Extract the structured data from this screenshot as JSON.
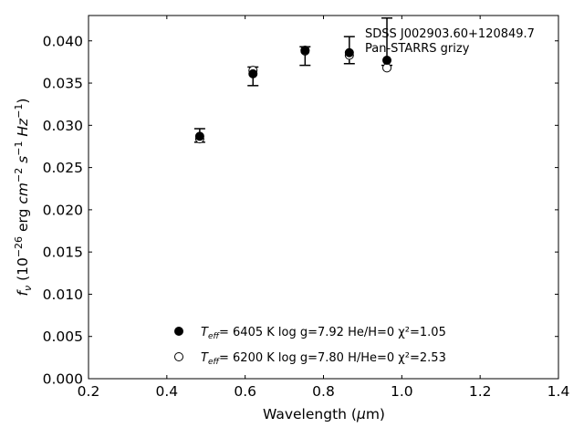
{
  "chart_data": {
    "type": "scatter",
    "xlabel": "Wavelength (μm)",
    "ylabel": "f_ν (10^-26 erg cm^-2 s^-1 Hz^-1)",
    "xlim": [
      0.2,
      1.4
    ],
    "ylim": [
      0.0,
      0.043
    ],
    "x_ticks": [
      "0.2",
      "0.4",
      "0.6",
      "0.8",
      "1.0",
      "1.2",
      "1.4"
    ],
    "y_ticks": [
      "0.000",
      "0.005",
      "0.010",
      "0.015",
      "0.020",
      "0.025",
      "0.030",
      "0.035",
      "0.040"
    ],
    "annotation_lines": [
      "SDSS J002903.60+120849.7",
      "Pan-STARRS grizy"
    ],
    "observed": {
      "x": [
        0.484,
        0.62,
        0.753,
        0.866,
        0.962
      ],
      "y": [
        0.0288,
        0.0358,
        0.0382,
        0.0389,
        0.0399
      ],
      "err": [
        0.0008,
        0.0011,
        0.0011,
        0.0016,
        0.0028
      ]
    },
    "series": [
      {
        "marker": "filled-circle",
        "legend": {
          "label": "T_eff",
          "text": "=  6405 K  log g=7.92  He/H=0  χ²=1.05"
        },
        "x": [
          0.484,
          0.62,
          0.753,
          0.866,
          0.962
        ],
        "y": [
          0.0287,
          0.0361,
          0.0389,
          0.0386,
          0.0377
        ]
      },
      {
        "marker": "open-circle",
        "legend": {
          "label": "T_eff",
          "text": "=  6200 K  log g=7.80  H/He=0  χ²=2.53"
        },
        "x": [
          0.484,
          0.62,
          0.753,
          0.866,
          0.962
        ],
        "y": [
          0.0284,
          0.0365,
          0.0388,
          0.0383,
          0.0368
        ]
      }
    ],
    "grid": false,
    "legend_position": "bottom-center"
  }
}
